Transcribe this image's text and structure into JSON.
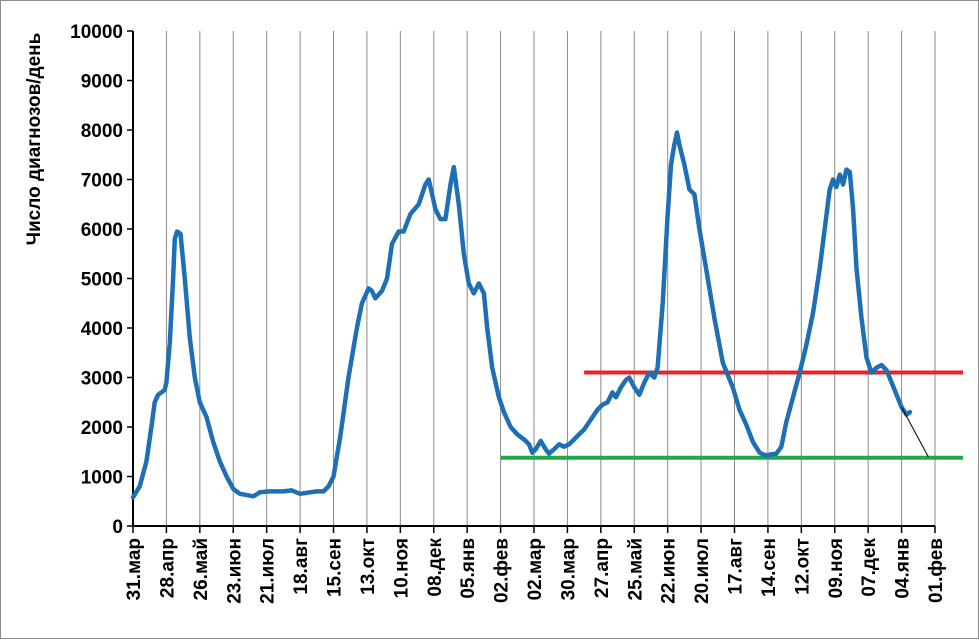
{
  "chart_data": {
    "type": "line",
    "ylabel": "Число диагнозов/день",
    "ylim": [
      0,
      10000
    ],
    "y_ticks": [
      "0",
      "1000",
      "2000",
      "3000",
      "4000",
      "5000",
      "6000",
      "7000",
      "8000",
      "9000",
      "10000"
    ],
    "x_tick_labels": [
      "31.мар",
      "28.апр",
      "26.май",
      "23.июн",
      "21.июл",
      "18.авг",
      "15.сен",
      "13.окт",
      "10.ноя",
      "08.дек",
      "05.янв",
      "02.фев",
      "02.мар",
      "30.мар",
      "27.апр",
      "25.май",
      "22.июн",
      "20.июл",
      "17.авг",
      "14.сен",
      "12.окт",
      "09.ноя",
      "07.дек",
      "04.янв",
      "01.фев"
    ],
    "x_unit": "weeks since 31.мар",
    "xlim": [
      0,
      24
    ],
    "grid": "vertical",
    "series": [
      {
        "color": "#1f6fb4",
        "points": [
          [
            0.0,
            580
          ],
          [
            0.2,
            800
          ],
          [
            0.4,
            1300
          ],
          [
            0.55,
            2000
          ],
          [
            0.65,
            2500
          ],
          [
            0.75,
            2650
          ],
          [
            0.85,
            2700
          ],
          [
            0.95,
            2750
          ],
          [
            1.0,
            2900
          ],
          [
            1.1,
            3700
          ],
          [
            1.2,
            5000
          ],
          [
            1.25,
            5800
          ],
          [
            1.32,
            5950
          ],
          [
            1.42,
            5900
          ],
          [
            1.55,
            5000
          ],
          [
            1.7,
            3800
          ],
          [
            1.85,
            3000
          ],
          [
            2.0,
            2500
          ],
          [
            2.2,
            2200
          ],
          [
            2.4,
            1700
          ],
          [
            2.6,
            1300
          ],
          [
            2.8,
            1000
          ],
          [
            3.0,
            750
          ],
          [
            3.2,
            650
          ],
          [
            3.45,
            620
          ],
          [
            3.6,
            600
          ],
          [
            3.8,
            680
          ],
          [
            4.1,
            700
          ],
          [
            4.5,
            700
          ],
          [
            4.75,
            720
          ],
          [
            5.0,
            650
          ],
          [
            5.3,
            680
          ],
          [
            5.5,
            700
          ],
          [
            5.7,
            700
          ],
          [
            5.85,
            800
          ],
          [
            6.0,
            1000
          ],
          [
            6.2,
            1800
          ],
          [
            6.45,
            3000
          ],
          [
            6.7,
            4000
          ],
          [
            6.85,
            4500
          ],
          [
            7.05,
            4800
          ],
          [
            7.15,
            4750
          ],
          [
            7.25,
            4600
          ],
          [
            7.45,
            4750
          ],
          [
            7.6,
            5000
          ],
          [
            7.75,
            5700
          ],
          [
            7.95,
            5950
          ],
          [
            8.1,
            5950
          ],
          [
            8.3,
            6300
          ],
          [
            8.55,
            6500
          ],
          [
            8.75,
            6900
          ],
          [
            8.85,
            7000
          ],
          [
            8.95,
            6700
          ],
          [
            9.05,
            6400
          ],
          [
            9.2,
            6200
          ],
          [
            9.35,
            6200
          ],
          [
            9.5,
            6900
          ],
          [
            9.6,
            7250
          ],
          [
            9.75,
            6500
          ],
          [
            9.9,
            5500
          ],
          [
            10.05,
            4900
          ],
          [
            10.2,
            4700
          ],
          [
            10.35,
            4900
          ],
          [
            10.5,
            4700
          ],
          [
            10.6,
            4000
          ],
          [
            10.75,
            3200
          ],
          [
            10.95,
            2600
          ],
          [
            11.1,
            2300
          ],
          [
            11.3,
            2000
          ],
          [
            11.5,
            1850
          ],
          [
            11.7,
            1750
          ],
          [
            11.85,
            1650
          ],
          [
            11.95,
            1480
          ],
          [
            12.05,
            1550
          ],
          [
            12.2,
            1720
          ],
          [
            12.35,
            1550
          ],
          [
            12.45,
            1460
          ],
          [
            12.6,
            1550
          ],
          [
            12.75,
            1650
          ],
          [
            12.9,
            1600
          ],
          [
            13.05,
            1650
          ],
          [
            13.2,
            1750
          ],
          [
            13.35,
            1850
          ],
          [
            13.5,
            1950
          ],
          [
            13.7,
            2150
          ],
          [
            13.9,
            2350
          ],
          [
            14.05,
            2450
          ],
          [
            14.2,
            2500
          ],
          [
            14.35,
            2700
          ],
          [
            14.45,
            2600
          ],
          [
            14.6,
            2800
          ],
          [
            14.75,
            2950
          ],
          [
            14.85,
            3000
          ],
          [
            15.0,
            2800
          ],
          [
            15.15,
            2650
          ],
          [
            15.3,
            2900
          ],
          [
            15.45,
            3100
          ],
          [
            15.6,
            3000
          ],
          [
            15.7,
            3200
          ],
          [
            15.85,
            4500
          ],
          [
            16.0,
            6300
          ],
          [
            16.1,
            7300
          ],
          [
            16.2,
            7700
          ],
          [
            16.28,
            7950
          ],
          [
            16.35,
            7700
          ],
          [
            16.5,
            7300
          ],
          [
            16.65,
            6800
          ],
          [
            16.8,
            6700
          ],
          [
            16.95,
            6000
          ],
          [
            17.15,
            5200
          ],
          [
            17.4,
            4200
          ],
          [
            17.65,
            3300
          ],
          [
            17.8,
            3050
          ],
          [
            17.95,
            2800
          ],
          [
            18.15,
            2350
          ],
          [
            18.35,
            2050
          ],
          [
            18.55,
            1700
          ],
          [
            18.75,
            1480
          ],
          [
            18.95,
            1420
          ],
          [
            19.1,
            1450
          ],
          [
            19.25,
            1460
          ],
          [
            19.4,
            1600
          ],
          [
            19.55,
            2100
          ],
          [
            19.75,
            2600
          ],
          [
            19.95,
            3100
          ],
          [
            20.15,
            3650
          ],
          [
            20.35,
            4300
          ],
          [
            20.55,
            5200
          ],
          [
            20.7,
            6000
          ],
          [
            20.85,
            6800
          ],
          [
            20.95,
            7000
          ],
          [
            21.05,
            6850
          ],
          [
            21.15,
            7100
          ],
          [
            21.25,
            6900
          ],
          [
            21.35,
            7200
          ],
          [
            21.45,
            7150
          ],
          [
            21.55,
            6400
          ],
          [
            21.65,
            5200
          ],
          [
            21.8,
            4200
          ],
          [
            21.95,
            3400
          ],
          [
            22.1,
            3100
          ],
          [
            22.25,
            3200
          ],
          [
            22.4,
            3250
          ],
          [
            22.55,
            3150
          ],
          [
            22.7,
            2900
          ],
          [
            22.85,
            2650
          ],
          [
            23.0,
            2400
          ],
          [
            23.15,
            2250
          ],
          [
            23.25,
            2300
          ]
        ]
      }
    ],
    "trend_line": {
      "color": "#000000",
      "from": [
        23.0,
        2400
      ],
      "to": [
        23.8,
        1400
      ]
    },
    "reference_lines": [
      {
        "color": "#e3262d",
        "value": 3100,
        "from_x": 13.5,
        "to_x": 24.9
      },
      {
        "color": "#22a846",
        "value": 1380,
        "from_x": 11.0,
        "to_x": 24.9
      }
    ]
  }
}
